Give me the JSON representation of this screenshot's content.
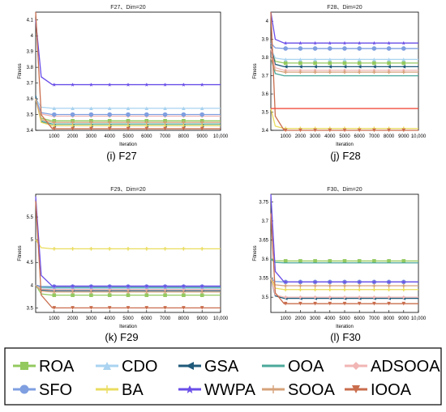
{
  "colors": {
    "ROA": "#93c95f",
    "CDO": "#a9d3f0",
    "GSA": "#1f5a7a",
    "OOA": "#4aa89a",
    "ADSOOA": "#f1b6b4",
    "SFO": "#7f9fe0",
    "BA": "#eadc5f",
    "WWPA": "#6a4ee8",
    "SOOA": "#d6a27a",
    "IOOA": "#c96d4d",
    "extra_red": "#f24d3d"
  },
  "legend": {
    "items": [
      "ROA",
      "CDO",
      "GSA",
      "OOA",
      "ADSOOA",
      "SFO",
      "BA",
      "WWPA",
      "SOOA",
      "IOOA"
    ]
  },
  "chart_data": [
    {
      "type": "line",
      "title": "F27、Dim=20",
      "caption": "(i) F27",
      "xlabel": "Iteration",
      "ylabel": "Fitness",
      "xlim": [
        0,
        10000
      ],
      "ylim": [
        3.4,
        4.15
      ],
      "x_ticks": [
        "1000",
        "2000",
        "3000",
        "4000",
        "5000",
        "6000",
        "7000",
        "8000",
        "9000",
        "10,000"
      ],
      "y_ticks": [
        "3.4",
        "3.5",
        "3.6",
        "3.7",
        "3.8",
        "3.9",
        "4",
        "4.1"
      ],
      "series": [
        {
          "name": "ROA",
          "start": 3.6,
          "values": [
            3.46
          ]
        },
        {
          "name": "CDO",
          "start": 3.6,
          "values": [
            3.54
          ]
        },
        {
          "name": "GSA",
          "start": 3.62,
          "values": [
            3.43
          ]
        },
        {
          "name": "OOA",
          "start": 3.6,
          "values": [
            3.44
          ]
        },
        {
          "name": "ADSOOA",
          "start": 3.6,
          "values": [
            3.49
          ]
        },
        {
          "name": "SFO",
          "start": 3.6,
          "values": [
            3.5
          ]
        },
        {
          "name": "BA",
          "start": 3.6,
          "values": [
            3.43
          ]
        },
        {
          "name": "WWPA",
          "start": 4.1,
          "values": [
            3.69
          ]
        },
        {
          "name": "SOOA",
          "start": 3.6,
          "values": [
            3.45
          ]
        },
        {
          "name": "IOOA",
          "start": 4.15,
          "values": [
            3.41
          ]
        }
      ]
    },
    {
      "type": "line",
      "title": "F28、Dim=20",
      "caption": "(j) F28",
      "xlabel": "Iteration",
      "ylabel": "Fitness",
      "xlim": [
        0,
        10000
      ],
      "ylim": [
        3.4,
        4.05
      ],
      "x_ticks": [
        "1000",
        "2000",
        "3000",
        "4000",
        "5000",
        "6000",
        "7000",
        "8000",
        "9000",
        "10,000"
      ],
      "y_ticks": [
        "3.4",
        "3.5",
        "3.6",
        "3.7",
        "3.8",
        "3.9",
        "4"
      ],
      "series": [
        {
          "name": "ROA",
          "start": 3.85,
          "values": [
            3.77
          ]
        },
        {
          "name": "CDO",
          "start": 3.85,
          "values": [
            3.79
          ]
        },
        {
          "name": "GSA",
          "start": 3.86,
          "values": [
            3.75
          ]
        },
        {
          "name": "OOA",
          "start": 3.8,
          "values": [
            3.7
          ]
        },
        {
          "name": "ADSOOA",
          "start": 3.85,
          "values": [
            3.73
          ]
        },
        {
          "name": "SFO",
          "start": 3.88,
          "values": [
            3.85
          ]
        },
        {
          "name": "BA",
          "start": 3.52,
          "values": [
            3.41
          ]
        },
        {
          "name": "WWPA",
          "start": 4.05,
          "values": [
            3.88
          ]
        },
        {
          "name": "SOOA",
          "start": 3.8,
          "values": [
            3.72
          ]
        },
        {
          "name": "IOOA",
          "start": 4.05,
          "values": [
            3.4
          ]
        },
        {
          "name": "",
          "start": 3.52,
          "values": [
            3.52
          ]
        }
      ]
    },
    {
      "type": "line",
      "title": "F29、Dim=20",
      "caption": "(k) F29",
      "xlabel": "Iteration",
      "ylabel": "Fitness",
      "xlim": [
        0,
        10000
      ],
      "ylim": [
        3.4,
        6.0
      ],
      "x_ticks": [
        "1000",
        "2000",
        "3000",
        "4000",
        "5000",
        "6000",
        "7000",
        "8000",
        "9000",
        "10,000"
      ],
      "y_ticks": [
        "3.5",
        "4",
        "4.5",
        "5",
        "5.5"
      ],
      "series": [
        {
          "name": "ROA",
          "start": 4.0,
          "values": [
            3.78
          ]
        },
        {
          "name": "CDO",
          "start": 4.0,
          "values": [
            3.93
          ]
        },
        {
          "name": "GSA",
          "start": 4.0,
          "values": [
            3.88
          ]
        },
        {
          "name": "OOA",
          "start": 4.0,
          "values": [
            3.95
          ]
        },
        {
          "name": "ADSOOA",
          "start": 4.0,
          "values": [
            3.9
          ]
        },
        {
          "name": "SFO",
          "start": 4.0,
          "values": [
            3.97
          ]
        },
        {
          "name": "BA",
          "start": 5.0,
          "values": [
            4.8
          ]
        },
        {
          "name": "WWPA",
          "start": 5.95,
          "values": [
            3.98
          ]
        },
        {
          "name": "SOOA",
          "start": 4.0,
          "values": [
            3.85
          ]
        },
        {
          "name": "IOOA",
          "start": 5.85,
          "values": [
            3.5
          ]
        }
      ]
    },
    {
      "type": "line",
      "title": "F30、Dim=20",
      "caption": "(l) F30",
      "xlabel": "Iteration",
      "ylabel": "Fitness",
      "xlim": [
        0,
        10000
      ],
      "ylim": [
        3.46,
        3.77
      ],
      "x_ticks": [
        "1000",
        "2000",
        "3000",
        "4000",
        "5000",
        "6000",
        "7000",
        "8000",
        "9000",
        "10,000"
      ],
      "y_ticks": [
        "3.5",
        "3.55",
        "3.6",
        "3.65",
        "3.7",
        "3.75"
      ],
      "series": [
        {
          "name": "ROA",
          "start": 3.6,
          "values": [
            3.595
          ]
        },
        {
          "name": "CDO",
          "start": 3.55,
          "values": [
            3.54
          ]
        },
        {
          "name": "GSA",
          "start": 3.55,
          "values": [
            3.497
          ]
        },
        {
          "name": "OOA",
          "start": 3.6,
          "values": [
            3.59
          ]
        },
        {
          "name": "ADSOOA",
          "start": 3.55,
          "values": [
            3.5
          ]
        },
        {
          "name": "SFO",
          "start": 3.55,
          "values": [
            3.54
          ]
        },
        {
          "name": "BA",
          "start": 3.55,
          "values": [
            3.52
          ]
        },
        {
          "name": "WWPA",
          "start": 3.77,
          "values": [
            3.54
          ]
        },
        {
          "name": "SOOA",
          "start": 3.55,
          "values": [
            3.53
          ]
        },
        {
          "name": "IOOA",
          "start": 3.72,
          "values": [
            3.483
          ]
        }
      ]
    }
  ]
}
